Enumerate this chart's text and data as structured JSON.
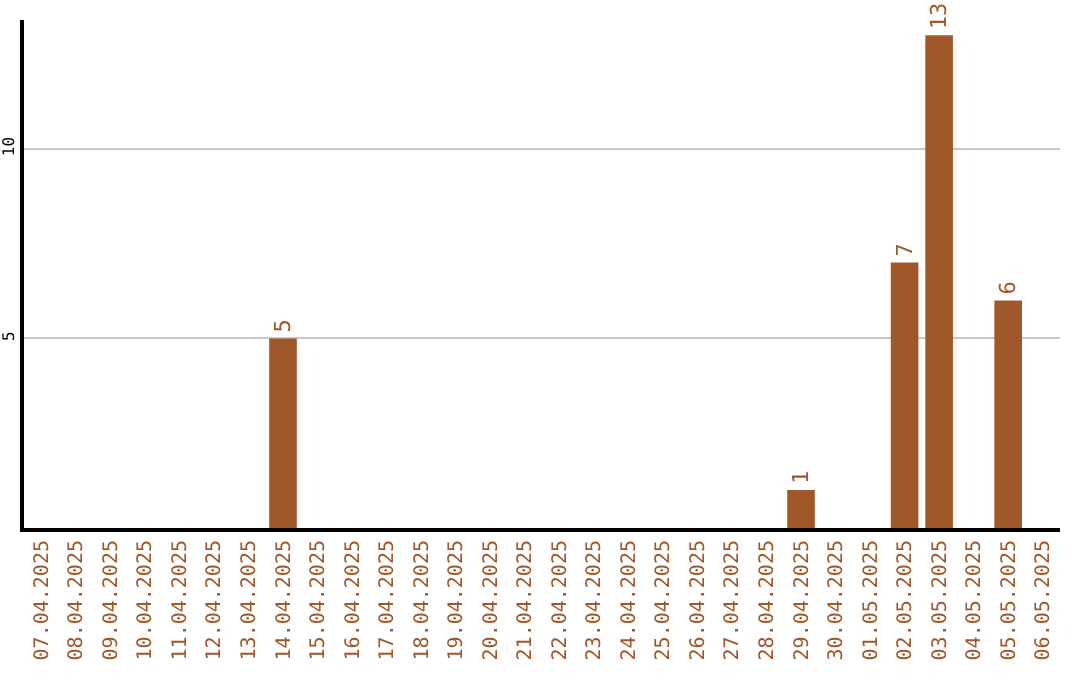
{
  "chart_data": {
    "type": "bar",
    "categories": [
      "07.04.2025",
      "08.04.2025",
      "09.04.2025",
      "10.04.2025",
      "11.04.2025",
      "12.04.2025",
      "13.04.2025",
      "14.04.2025",
      "15.04.2025",
      "16.04.2025",
      "17.04.2025",
      "18.04.2025",
      "19.04.2025",
      "20.04.2025",
      "21.04.2025",
      "22.04.2025",
      "23.04.2025",
      "24.04.2025",
      "25.04.2025",
      "26.04.2025",
      "27.04.2025",
      "28.04.2025",
      "29.04.2025",
      "30.04.2025",
      "01.05.2025",
      "02.05.2025",
      "03.05.2025",
      "04.05.2025",
      "05.05.2025",
      "06.05.2025"
    ],
    "values": [
      0,
      0,
      0,
      0,
      0,
      0,
      0,
      5,
      0,
      0,
      0,
      0,
      0,
      0,
      0,
      0,
      0,
      0,
      0,
      0,
      0,
      0,
      1,
      0,
      0,
      7,
      13,
      0,
      6,
      0
    ],
    "value_labels": [
      null,
      null,
      null,
      null,
      null,
      null,
      null,
      "5",
      null,
      null,
      null,
      null,
      null,
      null,
      null,
      null,
      null,
      null,
      null,
      null,
      null,
      null,
      "1",
      null,
      null,
      "7",
      "13",
      null,
      "6",
      null
    ],
    "color": "#a0582a",
    "ylim": [
      0,
      13.4
    ],
    "yticks": [
      5,
      10
    ],
    "grid": "y"
  }
}
